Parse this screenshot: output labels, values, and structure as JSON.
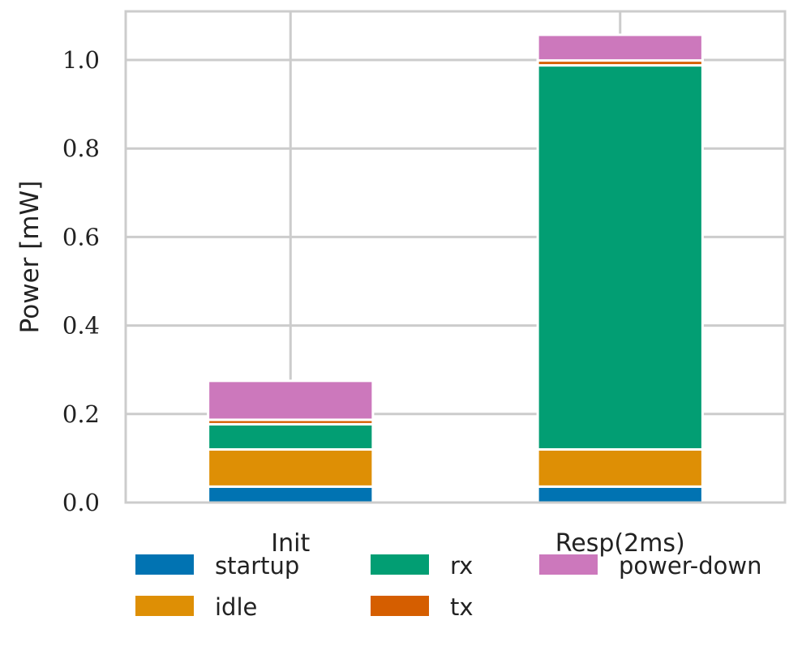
{
  "chart_data": {
    "type": "bar",
    "stacked": true,
    "title": "",
    "xlabel": "",
    "ylabel": "Power [mW]",
    "ylim": [
      0,
      1.11
    ],
    "yticks": [
      "0.0",
      "0.2",
      "0.4",
      "0.6",
      "0.8",
      "1.0"
    ],
    "grid": true,
    "legend_position": "bottom",
    "categories": [
      "Init",
      "Resp(2ms)"
    ],
    "series": [
      {
        "name": "startup",
        "color": "#0173b2",
        "values": [
          0.036,
          0.036
        ]
      },
      {
        "name": "idle",
        "color": "#de8f05",
        "values": [
          0.084,
          0.084
        ]
      },
      {
        "name": "rx",
        "color": "#029e73",
        "values": [
          0.057,
          0.868
        ]
      },
      {
        "name": "tx",
        "color": "#d55e00",
        "values": [
          0.01,
          0.011
        ]
      },
      {
        "name": "power-down",
        "color": "#cc78bc",
        "values": [
          0.088,
          0.058
        ]
      }
    ]
  }
}
